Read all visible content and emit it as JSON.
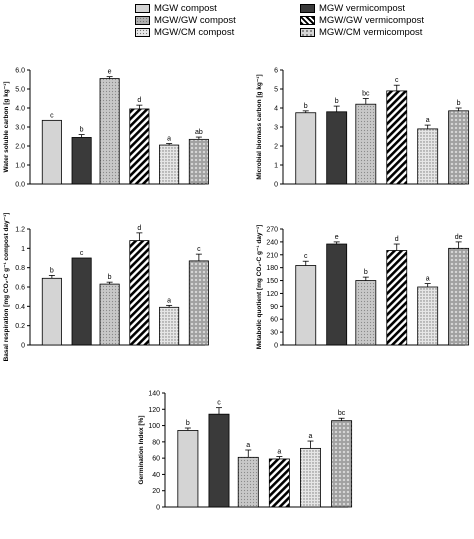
{
  "legend": [
    {
      "label": "MGW compost",
      "fill": "light"
    },
    {
      "label": "MGW vermicompost",
      "fill": "dark"
    },
    {
      "label": "MGW/GW compost",
      "fill": "grey-dots"
    },
    {
      "label": "MGW/GW vermicompost",
      "fill": "stripes"
    },
    {
      "label": "MGW/CM compost",
      "fill": "fine-dots"
    },
    {
      "label": "MGW/CM vermicompost",
      "fill": "circles"
    }
  ],
  "colors": {
    "light": "#d4d4d4",
    "dark": "#3a3a3a",
    "grey": "#b8b8b8",
    "bar_outline": "#000000"
  },
  "chart_data": [
    {
      "type": "bar",
      "ylabel": "Water soluble carbon [g kg⁻¹]",
      "ylim": [
        0,
        6
      ],
      "yticks": [
        "0.0",
        "1.0",
        "2.0",
        "3.0",
        "4.0",
        "5.0",
        "6.0"
      ],
      "categories": [
        "MGW compost",
        "MGW vermicompost",
        "MGW/GW compost",
        "MGW/GW vermicompost",
        "MGW/CM compost",
        "MGW/CM vermicompost"
      ],
      "values": [
        3.35,
        2.45,
        5.55,
        3.95,
        2.05,
        2.35
      ],
      "errors": [
        0.0,
        0.15,
        0.1,
        0.2,
        0.08,
        0.12
      ],
      "letters": [
        "c",
        "b",
        "e",
        "d",
        "a",
        "ab"
      ],
      "grid": false
    },
    {
      "type": "bar",
      "ylabel": "Microbial biomass carbon [g kg⁻¹]",
      "ylim": [
        0,
        6
      ],
      "yticks": [
        "0",
        "1",
        "2",
        "3",
        "4",
        "5",
        "6"
      ],
      "categories": [
        "MGW compost",
        "MGW vermicompost",
        "MGW/GW compost",
        "MGW/GW vermicompost",
        "MGW/CM compost",
        "MGW/CM vermicompost"
      ],
      "values": [
        3.75,
        3.8,
        4.2,
        4.9,
        2.9,
        3.85
      ],
      "errors": [
        0.1,
        0.3,
        0.3,
        0.3,
        0.2,
        0.15
      ],
      "letters": [
        "b",
        "b",
        "bc",
        "c",
        "a",
        "b"
      ],
      "grid": false
    },
    {
      "type": "bar",
      "ylabel": "Basal respiration [mg CO₂-C g⁻¹ compost day⁻¹]",
      "ylim": [
        0,
        1.2
      ],
      "yticks": [
        "0",
        "0.2",
        "0.4",
        "0.6",
        "0.8",
        "1",
        "1.2"
      ],
      "categories": [
        "MGW compost",
        "MGW vermicompost",
        "MGW/GW compost",
        "MGW/GW vermicompost",
        "MGW/CM compost",
        "MGW/CM vermicompost"
      ],
      "values": [
        0.69,
        0.9,
        0.63,
        1.08,
        0.39,
        0.87
      ],
      "errors": [
        0.03,
        0.0,
        0.02,
        0.08,
        0.02,
        0.07
      ],
      "letters": [
        "b",
        "c",
        "b",
        "d",
        "a",
        "c"
      ],
      "grid": false
    },
    {
      "type": "bar",
      "ylabel": "Metabolic quotient [mg CO₂-C g⁻¹ day⁻¹]",
      "ylim": [
        0,
        270
      ],
      "yticks": [
        "0",
        "30",
        "60",
        "90",
        "120",
        "150",
        "180",
        "210",
        "240",
        "270"
      ],
      "categories": [
        "MGW compost",
        "MGW vermicompost",
        "MGW/GW compost",
        "MGW/GW vermicompost",
        "MGW/CM compost",
        "MGW/CM vermicompost"
      ],
      "values": [
        185,
        235,
        150,
        220,
        135,
        225
      ],
      "errors": [
        10,
        5,
        8,
        15,
        8,
        15
      ],
      "letters": [
        "c",
        "e",
        "b",
        "d",
        "a",
        "de"
      ],
      "grid": false
    },
    {
      "type": "bar",
      "ylabel": "Germination Index [%]",
      "ylim": [
        0,
        140
      ],
      "yticks": [
        "0",
        "20",
        "40",
        "60",
        "80",
        "100",
        "120",
        "140"
      ],
      "categories": [
        "MGW compost",
        "MGW vermicompost",
        "MGW/GW compost",
        "MGW/GW vermicompost",
        "MGW/CM compost",
        "MGW/CM vermicompost"
      ],
      "values": [
        94,
        114,
        61,
        59,
        72,
        106
      ],
      "errors": [
        3,
        8,
        9,
        3,
        9,
        3
      ],
      "letters": [
        "b",
        "c",
        "a",
        "a",
        "a",
        "bc"
      ],
      "grid": false
    }
  ]
}
